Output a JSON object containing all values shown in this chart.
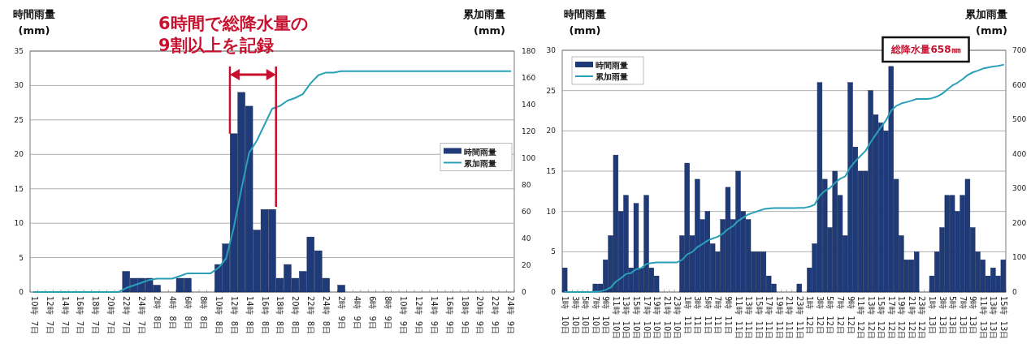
{
  "chart_data": [
    {
      "type": "bar",
      "ylabel": "時間雨量\n(mm)",
      "y2label": "累加雨量\n(mm)",
      "ylim": [
        0,
        35
      ],
      "yticks": [
        0,
        5,
        10,
        15,
        20,
        25,
        30,
        35
      ],
      "y2lim": [
        0,
        180
      ],
      "y2ticks": [
        0,
        20,
        40,
        60,
        80,
        100,
        120,
        140,
        160,
        180
      ],
      "grid": "y",
      "legend": "right",
      "annotations": [
        {
          "text": "6時間で総降水量の\n9割以上を記録",
          "x": "12時 8日",
          "y": 23
        }
      ],
      "categories": [
        "10時 7日",
        null,
        "12時 7日",
        null,
        "14時 7日",
        null,
        "16時 7日",
        null,
        "18時 7日",
        null,
        "20時 7日",
        null,
        "22時 7日",
        null,
        "24時 7日",
        null,
        "2時 8日",
        null,
        "4時 8日",
        null,
        "6時 8日",
        null,
        "8時 8日",
        null,
        "10時 8日",
        null,
        "12時 8日",
        null,
        "14時 8日",
        null,
        "16時 8日",
        null,
        "18時 8日",
        null,
        "20時 8日",
        null,
        "22時 8日",
        null,
        "24時 8日",
        null,
        "2時 9日",
        null,
        "4時 9日",
        null,
        "6時 9日",
        null,
        "8時 9日",
        null,
        "10時 9日",
        null,
        "12時 9日",
        null,
        "14時 9日",
        null,
        "16時 9日",
        null,
        "18時 9日",
        null,
        "20時 9日",
        null,
        "22時 9日",
        null,
        "24時 9日"
      ],
      "series": [
        {
          "name": "時間雨量",
          "color": "#1f3a78",
          "values": [
            0,
            0,
            0,
            0,
            0,
            0,
            0,
            0,
            0,
            0,
            0,
            0,
            3,
            2,
            2,
            2,
            1,
            0,
            0,
            2,
            2,
            0,
            0,
            0,
            4,
            7,
            23,
            29,
            27,
            9,
            12,
            12,
            2,
            4,
            2,
            3,
            8,
            6,
            2,
            0,
            1,
            0,
            0,
            0,
            0,
            0,
            0,
            0,
            0,
            0,
            0,
            0,
            0,
            0,
            0,
            0,
            0,
            0,
            0,
            0,
            0,
            0,
            0
          ]
        },
        {
          "name": "累加雨量",
          "type": "line",
          "axis": "y2",
          "color": "#2aa0b8",
          "values": [
            0,
            0,
            0,
            0,
            0,
            0,
            0,
            0,
            0,
            0,
            0,
            0,
            3,
            5,
            7,
            9,
            10,
            10,
            10,
            12,
            14,
            14,
            14,
            14,
            18,
            25,
            48,
            77,
            104,
            113,
            125,
            137,
            139,
            143,
            145,
            148,
            156,
            162,
            164,
            164,
            165,
            165,
            165,
            165,
            165,
            165,
            165,
            165,
            165,
            165,
            165,
            165,
            165,
            165,
            165,
            165,
            165,
            165,
            165,
            165,
            165,
            165,
            165
          ]
        }
      ]
    },
    {
      "type": "bar",
      "ylabel": "時間雨量\n(mm)",
      "y2label": "累加雨量\n(mm)",
      "ylim": [
        0,
        30
      ],
      "yticks": [
        0,
        5,
        10,
        15,
        20,
        25,
        30
      ],
      "y2lim": [
        0,
        700
      ],
      "y2ticks": [
        0,
        100,
        200,
        300,
        400,
        500,
        600,
        700
      ],
      "grid": "y",
      "legend": "top left",
      "annotations": [
        "総降水量658㎜"
      ],
      "categories": [
        "1時 10日",
        null,
        "3時 10日",
        null,
        "5時 10日",
        null,
        "7時 10日",
        null,
        "9時 10日",
        null,
        "11時 10日",
        null,
        "13時 10日",
        null,
        "15時 10日",
        null,
        "17時 10日",
        null,
        "19時 10日",
        null,
        "21時 10日",
        null,
        "23時 10日",
        null,
        "1時 11日",
        null,
        "3時 11日",
        null,
        "5時 11日",
        null,
        "7時 11日",
        null,
        "9時 11日",
        null,
        "11時 11日",
        null,
        "13時 11日",
        null,
        "15時 11日",
        null,
        "17時 11日",
        null,
        "19時 11日",
        null,
        "21時 11日",
        null,
        "23時 11日",
        null,
        "1時 12日",
        null,
        "3時 12日",
        null,
        "5時 12日",
        null,
        "7時 12日",
        null,
        "9時 12日",
        null,
        "11時 12日",
        null,
        "13時 12日",
        null,
        "15時 12日",
        null,
        "17時 12日",
        null,
        "19時 12日",
        null,
        "21時 12日",
        null,
        "23時 12日",
        null,
        "1時 13日",
        null,
        "3時 13日",
        null,
        "5時 13日",
        null,
        "7時 13日",
        null,
        "9時 13日",
        null,
        "11時 13日",
        null,
        "13時 13日",
        null,
        "15時 13日"
      ],
      "series": [
        {
          "name": "時間雨量",
          "color": "#1f3a78",
          "values": [
            3,
            0,
            0,
            0,
            0,
            0,
            1,
            1,
            4,
            7,
            17,
            10,
            12,
            3,
            11,
            3,
            12,
            3,
            2,
            0,
            0,
            0,
            0,
            7,
            16,
            7,
            14,
            9,
            10,
            6,
            5,
            9,
            13,
            9,
            15,
            10,
            9,
            5,
            5,
            5,
            2,
            1,
            0,
            0,
            0,
            0,
            1,
            0,
            3,
            6,
            26,
            14,
            8,
            15,
            12,
            7,
            26,
            18,
            15,
            15,
            25,
            22,
            21,
            20,
            28,
            14,
            7,
            4,
            4,
            5,
            0,
            0,
            2,
            5,
            8,
            12,
            12,
            10,
            12,
            14,
            8,
            5,
            4,
            2,
            3,
            2,
            4
          ]
        },
        {
          "name": "累加雨量",
          "type": "line",
          "axis": "y2",
          "color": "#2aa0b8",
          "values": [
            0,
            0,
            0,
            0,
            0,
            0,
            1,
            2,
            6,
            13,
            30,
            40,
            52,
            55,
            66,
            69,
            81,
            84,
            86,
            86,
            86,
            86,
            86,
            93,
            109,
            116,
            130,
            139,
            149,
            155,
            160,
            169,
            182,
            191,
            206,
            216,
            225,
            230,
            235,
            240,
            242,
            243,
            243,
            243,
            243,
            243,
            244,
            244,
            247,
            253,
            279,
            293,
            301,
            316,
            328,
            335,
            361,
            379,
            394,
            409,
            434,
            456,
            477,
            497,
            525,
            539,
            546,
            550,
            554,
            559,
            559,
            559,
            561,
            566,
            574,
            586,
            598,
            606,
            616,
            628,
            636,
            641,
            647,
            650,
            653,
            655,
            658
          ]
        }
      ]
    }
  ]
}
